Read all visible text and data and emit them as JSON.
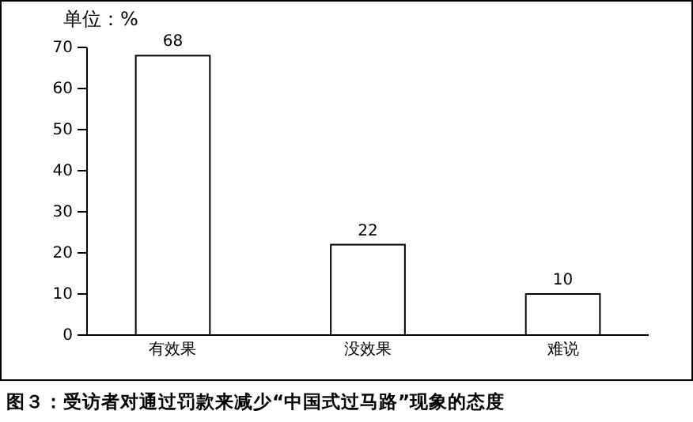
{
  "chart_data": {
    "type": "bar",
    "title": "图３：受访者对通过罚款来减少“中国式过马路”现象的态度",
    "ylabel": "单位：%",
    "categories": [
      "有效果",
      "没效果",
      "难说"
    ],
    "values": [
      68,
      22,
      10
    ],
    "color": "#ffffff",
    "ylim": [
      0,
      70
    ],
    "yticks": [
      0,
      10,
      20,
      30,
      40,
      50,
      60,
      70
    ],
    "grid": false,
    "data_labels": true
  }
}
